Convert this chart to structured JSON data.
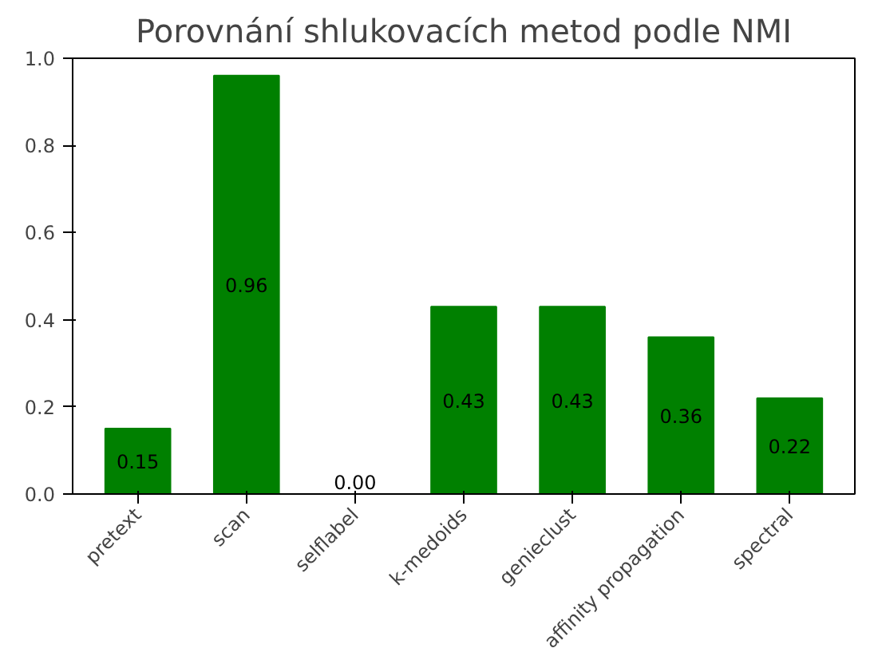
{
  "chart_data": {
    "type": "bar",
    "title": "Porovnání shlukovacích metod podle NMI",
    "categories": [
      "pretext",
      "scan",
      "selflabel",
      "k-medoids",
      "genieclust",
      "affinity propagation",
      "spectral"
    ],
    "values": [
      0.15,
      0.96,
      0.0,
      0.43,
      0.43,
      0.36,
      0.22
    ],
    "value_labels": [
      "0.15",
      "0.96",
      "0.00",
      "0.43",
      "0.43",
      "0.36",
      "0.22"
    ],
    "color": "#008000",
    "ylim": [
      0,
      1.0
    ],
    "yticks": [
      {
        "value": 0,
        "label": "0.0"
      },
      {
        "value": 0.2,
        "label": "0.2"
      },
      {
        "value": 0.4,
        "label": "0.4"
      },
      {
        "value": 0.6,
        "label": "0.6"
      },
      {
        "value": 0.8,
        "label": "0.8"
      },
      {
        "value": 1.0,
        "label": "1.0"
      }
    ],
    "grid": false
  }
}
